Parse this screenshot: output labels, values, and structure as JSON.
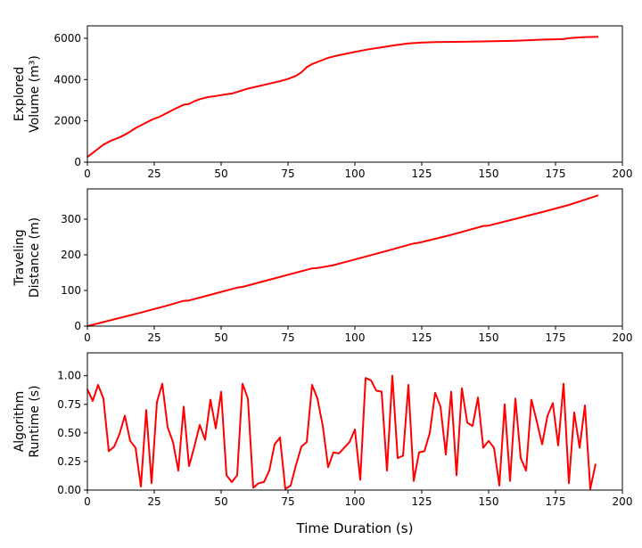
{
  "chart_data": [
    {
      "type": "line",
      "ylabel_lines": [
        "Explored",
        "Volume (m³)"
      ],
      "xlim": [
        0,
        200
      ],
      "ylim": [
        0,
        6600
      ],
      "xticks": [
        0,
        25,
        50,
        75,
        100,
        125,
        150,
        175,
        200
      ],
      "yticks": [
        0,
        2000,
        4000,
        6000
      ],
      "color": "#ff0000",
      "x": [
        0,
        3,
        6,
        9,
        12,
        15,
        18,
        21,
        24,
        27,
        30,
        33,
        36,
        38,
        40,
        42,
        45,
        48,
        51,
        54,
        56,
        58,
        60,
        63,
        66,
        69,
        72,
        75,
        78,
        80,
        82,
        84,
        86,
        88,
        90,
        93,
        96,
        100,
        105,
        110,
        115,
        120,
        125,
        130,
        140,
        150,
        160,
        170,
        178,
        180,
        185,
        191
      ],
      "y": [
        250,
        550,
        850,
        1050,
        1200,
        1400,
        1650,
        1850,
        2050,
        2200,
        2400,
        2600,
        2780,
        2820,
        2950,
        3050,
        3150,
        3200,
        3270,
        3320,
        3400,
        3480,
        3560,
        3650,
        3740,
        3830,
        3920,
        4030,
        4180,
        4350,
        4600,
        4750,
        4850,
        4950,
        5050,
        5150,
        5230,
        5340,
        5460,
        5560,
        5660,
        5750,
        5790,
        5810,
        5830,
        5850,
        5880,
        5930,
        5960,
        6000,
        6050,
        6070
      ]
    },
    {
      "type": "line",
      "ylabel_lines": [
        "Traveling",
        "Distance (m)"
      ],
      "xlim": [
        0,
        200
      ],
      "ylim": [
        0,
        385
      ],
      "xticks": [
        0,
        25,
        50,
        75,
        100,
        125,
        150,
        175,
        200
      ],
      "yticks": [
        0,
        100,
        200,
        300
      ],
      "color": "#ff0000",
      "x": [
        0,
        10,
        20,
        30,
        36,
        38,
        45,
        50,
        56,
        58,
        70,
        84,
        86,
        92,
        100,
        110,
        122,
        124,
        135,
        148,
        150,
        160,
        170,
        180,
        191
      ],
      "y": [
        0,
        19,
        38,
        58,
        71,
        72,
        86,
        96,
        108,
        110,
        134,
        162,
        163,
        171,
        187,
        207,
        232,
        234,
        254,
        281,
        282,
        301,
        320,
        340,
        367
      ]
    },
    {
      "type": "line",
      "ylabel_lines": [
        "Algorithm",
        "Runtime (s)"
      ],
      "xlim": [
        0,
        200
      ],
      "ylim": [
        0,
        1.2
      ],
      "xticks": [
        0,
        25,
        50,
        75,
        100,
        125,
        150,
        175,
        200
      ],
      "yticks": [
        0.0,
        0.25,
        0.5,
        0.75,
        1.0
      ],
      "ytick_labels": [
        "0.00",
        "0.25",
        "0.50",
        "0.75",
        "1.00"
      ],
      "color": "#ff0000",
      "x": [
        0,
        2,
        4,
        6,
        8,
        10,
        12,
        14,
        16,
        18,
        20,
        22,
        24,
        26,
        28,
        30,
        32,
        34,
        36,
        38,
        40,
        42,
        44,
        46,
        48,
        50,
        52,
        54,
        56,
        58,
        60,
        62,
        64,
        66,
        68,
        70,
        72,
        74,
        76,
        78,
        80,
        82,
        84,
        86,
        88,
        90,
        92,
        94,
        96,
        98,
        100,
        102,
        104,
        106,
        108,
        110,
        112,
        114,
        116,
        118,
        120,
        122,
        124,
        126,
        128,
        130,
        132,
        134,
        136,
        138,
        140,
        142,
        144,
        146,
        148,
        150,
        152,
        154,
        156,
        158,
        160,
        162,
        164,
        166,
        168,
        170,
        172,
        174,
        176,
        178,
        180,
        182,
        184,
        186,
        188,
        190
      ],
      "y": [
        0.88,
        0.78,
        0.92,
        0.8,
        0.34,
        0.38,
        0.49,
        0.65,
        0.43,
        0.37,
        0.03,
        0.7,
        0.06,
        0.77,
        0.93,
        0.55,
        0.42,
        0.17,
        0.73,
        0.21,
        0.38,
        0.57,
        0.44,
        0.79,
        0.54,
        0.86,
        0.13,
        0.07,
        0.13,
        0.93,
        0.8,
        0.02,
        0.06,
        0.07,
        0.17,
        0.4,
        0.46,
        0.01,
        0.04,
        0.22,
        0.38,
        0.42,
        0.92,
        0.8,
        0.56,
        0.2,
        0.33,
        0.32,
        0.37,
        0.42,
        0.53,
        0.09,
        0.98,
        0.96,
        0.87,
        0.86,
        0.17,
        1.0,
        0.28,
        0.3,
        0.92,
        0.08,
        0.33,
        0.34,
        0.5,
        0.85,
        0.73,
        0.31,
        0.86,
        0.13,
        0.89,
        0.59,
        0.56,
        0.81,
        0.37,
        0.43,
        0.37,
        0.04,
        0.75,
        0.08,
        0.8,
        0.28,
        0.17,
        0.79,
        0.6,
        0.4,
        0.65,
        0.76,
        0.39,
        0.93,
        0.06,
        0.68,
        0.37,
        0.74,
        0.01,
        0.23
      ]
    }
  ],
  "xlabel": "Time Duration (s)"
}
